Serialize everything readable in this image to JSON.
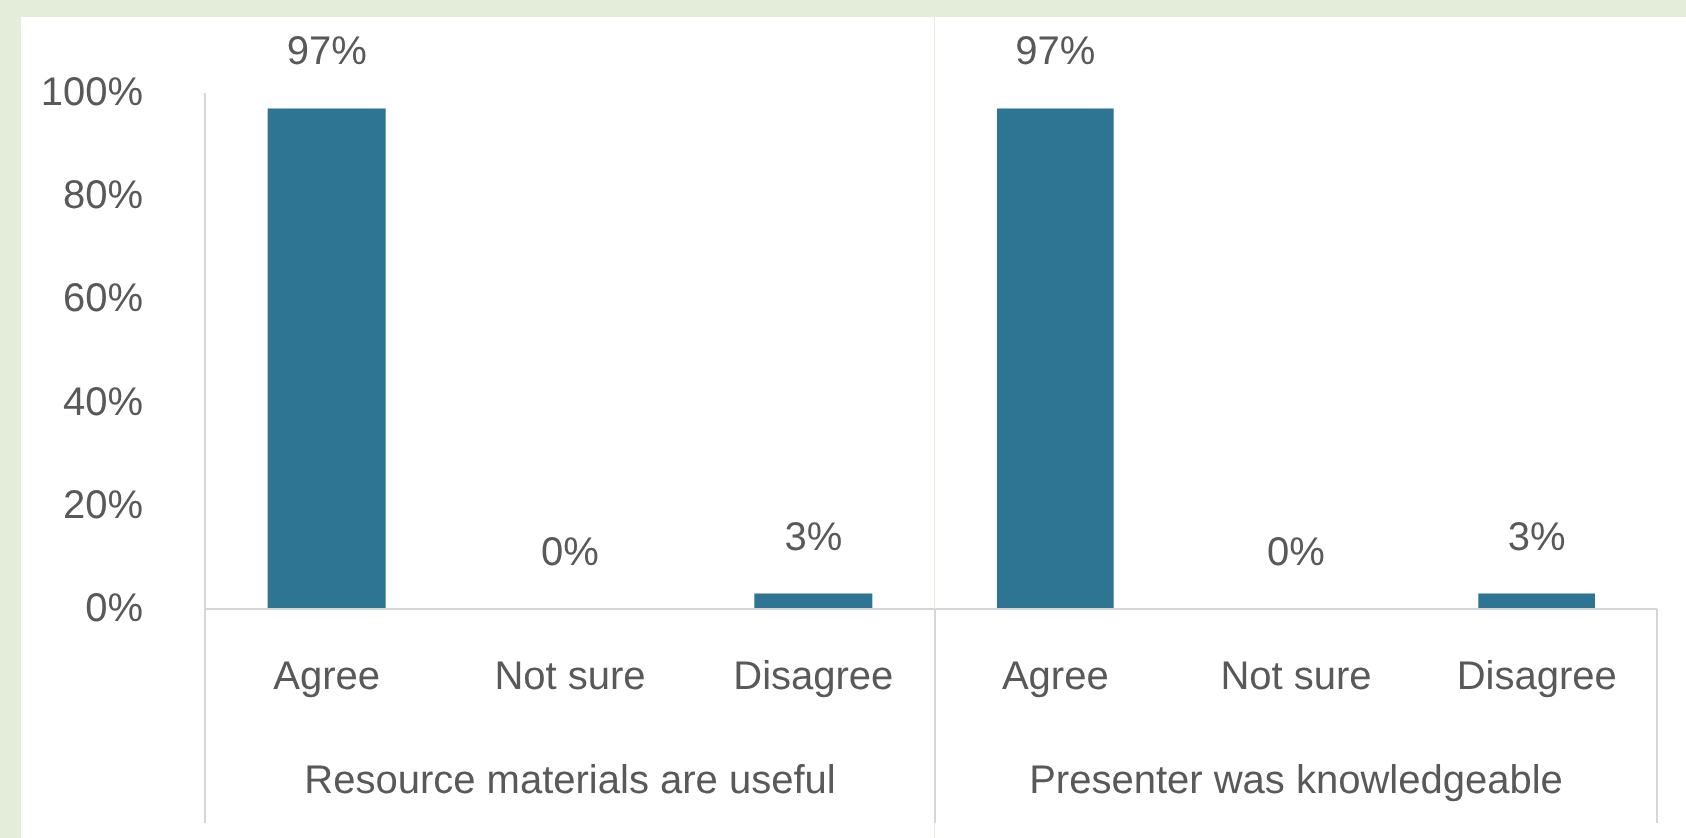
{
  "chart_data": [
    {
      "type": "bar",
      "categories": [
        "Agree",
        "Not sure",
        "Disagree"
      ],
      "values": [
        97,
        0,
        3
      ],
      "color": "#2e7593",
      "value_labels": [
        "97%",
        "0%",
        "3%"
      ],
      "xlabel": "Resource materials are useful",
      "ylim": [
        0,
        100
      ],
      "yticks": [
        {
          "value": 0,
          "label": "0%"
        },
        {
          "value": 20,
          "label": "20%"
        },
        {
          "value": 40,
          "label": "40%"
        },
        {
          "value": 60,
          "label": "60%"
        },
        {
          "value": 80,
          "label": "80%"
        },
        {
          "value": 100,
          "label": "100%"
        }
      ]
    },
    {
      "type": "bar",
      "categories": [
        "Agree",
        "Not sure",
        "Disagree"
      ],
      "values": [
        97,
        0,
        3
      ],
      "color": "#2e7593",
      "value_labels": [
        "97%",
        "0%",
        "3%"
      ],
      "xlabel": "Presenter was knowledgeable",
      "tick_labels": "x"
    }
  ]
}
